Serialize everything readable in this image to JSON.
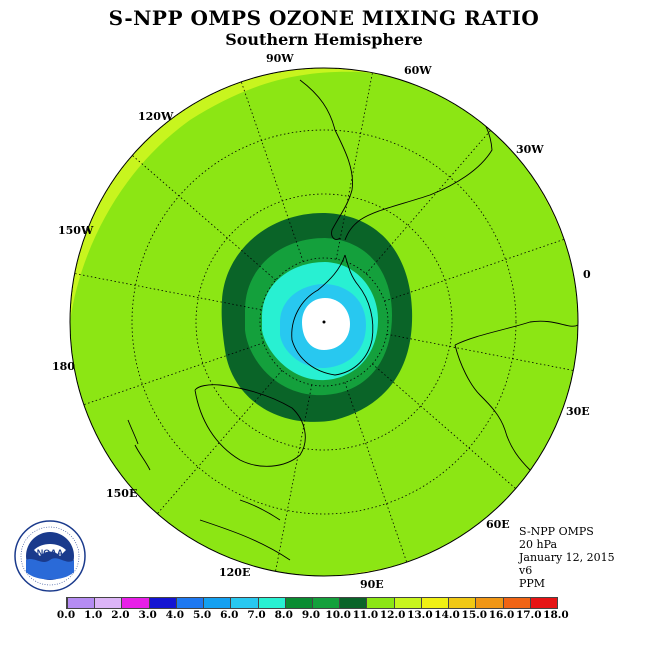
{
  "title": "S-NPP OMPS OZONE MIXING RATIO",
  "subtitle": "Southern Hemisphere",
  "longitude_labels": [
    "90W",
    "60W",
    "30W",
    "0",
    "30E",
    "60E",
    "90E",
    "120E",
    "150E",
    "180",
    "150W",
    "120W"
  ],
  "info": {
    "instrument": "S-NPP OMPS",
    "level": "20 hPa",
    "date": "January 12, 2015",
    "version": "v6",
    "units": "PPM"
  },
  "logo_text": "NOAA",
  "colorbar": {
    "labels": [
      "0.0",
      "1.0",
      "2.0",
      "3.0",
      "4.0",
      "5.0",
      "6.0",
      "7.0",
      "8.0",
      "9.0",
      "10.0",
      "11.0",
      "12.0",
      "13.0",
      "14.0",
      "15.0",
      "16.0",
      "17.0",
      "18.0"
    ],
    "colors": [
      "#b58cf2",
      "#dcb4f7",
      "#e81fe8",
      "#1414d2",
      "#1e78f0",
      "#14a0f0",
      "#28c8f0",
      "#28f0d2",
      "#0a8c32",
      "#14a03c",
      "#0a6428",
      "#8ce614",
      "#c8f51e",
      "#f0f014",
      "#f0c814",
      "#f09614",
      "#f06414",
      "#e61414",
      "#8c5a3c"
    ]
  },
  "contour_colors": {
    "c5": "#14a0f0",
    "c6": "#28c8f0",
    "c7": "#28f0d2",
    "c8": "#14a03c",
    "c9": "#0a6428",
    "c10": "#8ce614",
    "c11": "#c8f51e"
  }
}
